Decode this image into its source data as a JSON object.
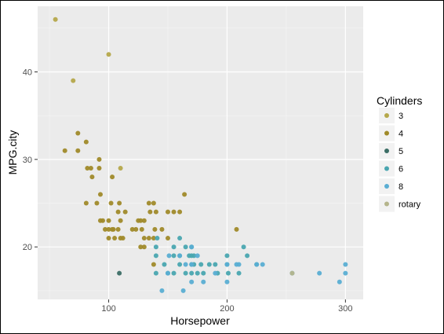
{
  "chart_data": {
    "type": "scatter",
    "xlabel": "Horsepower",
    "ylabel": "MPG.city",
    "xlim": [
      40,
      315
    ],
    "ylim": [
      14,
      47.5
    ],
    "xticks": [
      100,
      200,
      300
    ],
    "yticks": [
      20,
      30,
      40
    ],
    "grid": true,
    "legend": {
      "title": "Cylinders",
      "placement": "right"
    },
    "series": [
      {
        "name": "3",
        "color": "#b5a84b",
        "points": [
          [
            55,
            46
          ],
          [
            100,
            42
          ],
          [
            70,
            39
          ],
          [
            110,
            29
          ]
        ]
      },
      {
        "name": "4",
        "color": "#a08a2a",
        "points": [
          [
            63,
            31
          ],
          [
            74,
            33
          ],
          [
            74,
            31
          ],
          [
            81,
            32
          ],
          [
            82,
            29
          ],
          [
            81,
            25
          ],
          [
            85,
            29
          ],
          [
            86,
            28
          ],
          [
            90,
            25
          ],
          [
            92,
            30
          ],
          [
            92,
            29
          ],
          [
            93,
            26
          ],
          [
            93,
            23
          ],
          [
            95,
            23
          ],
          [
            97,
            22
          ],
          [
            100,
            22
          ],
          [
            100,
            21
          ],
          [
            100,
            23
          ],
          [
            102,
            25
          ],
          [
            103,
            28
          ],
          [
            103,
            22
          ],
          [
            104,
            22
          ],
          [
            105,
            21
          ],
          [
            108,
            22
          ],
          [
            108,
            24
          ],
          [
            109,
            25
          ],
          [
            110,
            21
          ],
          [
            110,
            23
          ],
          [
            112,
            21
          ],
          [
            114,
            24
          ],
          [
            120,
            22
          ],
          [
            123,
            22
          ],
          [
            125,
            23
          ],
          [
            127,
            20
          ],
          [
            127,
            23
          ],
          [
            128,
            22
          ],
          [
            130,
            20
          ],
          [
            130,
            23
          ],
          [
            130,
            21
          ],
          [
            134,
            25
          ],
          [
            134,
            21
          ],
          [
            135,
            24
          ],
          [
            138,
            18
          ],
          [
            138,
            25
          ],
          [
            139,
            22
          ],
          [
            140,
            24
          ],
          [
            145,
            22
          ],
          [
            150,
            24
          ],
          [
            150,
            21
          ],
          [
            155,
            24
          ],
          [
            160,
            24
          ],
          [
            164,
            26
          ],
          [
            208,
            22
          ],
          [
            138,
            21
          ]
        ]
      },
      {
        "name": "5",
        "color": "#3c6e66",
        "points": [
          [
            109,
            17
          ]
        ]
      },
      {
        "name": "6",
        "color": "#4aa6b0",
        "points": [
          [
            140,
            20
          ],
          [
            140,
            19
          ],
          [
            140,
            17
          ],
          [
            141,
            21
          ],
          [
            147,
            18
          ],
          [
            150,
            17
          ],
          [
            155,
            20
          ],
          [
            155,
            19
          ],
          [
            155,
            17
          ],
          [
            160,
            19
          ],
          [
            160,
            21
          ],
          [
            160,
            18
          ],
          [
            165,
            17
          ],
          [
            165,
            20
          ],
          [
            168,
            19
          ],
          [
            170,
            19
          ],
          [
            170,
            18
          ],
          [
            170,
            17
          ],
          [
            170,
            20
          ],
          [
            172,
            19
          ],
          [
            172,
            18
          ],
          [
            175,
            17
          ],
          [
            178,
            18
          ],
          [
            180,
            17
          ],
          [
            185,
            18
          ],
          [
            190,
            18
          ],
          [
            192,
            17
          ],
          [
            200,
            19
          ],
          [
            200,
            18
          ],
          [
            201,
            17
          ],
          [
            210,
            17
          ],
          [
            214,
            20
          ],
          [
            217,
            19
          ],
          [
            225,
            18
          ]
        ]
      },
      {
        "name": "8",
        "color": "#5aaed3",
        "points": [
          [
            145,
            15
          ],
          [
            150,
            17
          ],
          [
            151,
            19
          ],
          [
            160,
            19
          ],
          [
            163,
            15
          ],
          [
            165,
            18
          ],
          [
            170,
            16
          ],
          [
            170,
            18
          ],
          [
            170,
            20
          ],
          [
            175,
            19
          ],
          [
            180,
            16
          ],
          [
            190,
            17
          ],
          [
            200,
            16
          ],
          [
            200,
            18
          ],
          [
            208,
            18
          ],
          [
            210,
            18
          ],
          [
            225,
            18
          ],
          [
            230,
            18
          ],
          [
            255,
            17
          ],
          [
            278,
            17
          ],
          [
            295,
            16
          ],
          [
            300,
            17
          ],
          [
            300,
            18
          ]
        ]
      },
      {
        "name": "rotary",
        "color": "#b5b58c",
        "points": [
          [
            255,
            17
          ]
        ]
      }
    ]
  }
}
